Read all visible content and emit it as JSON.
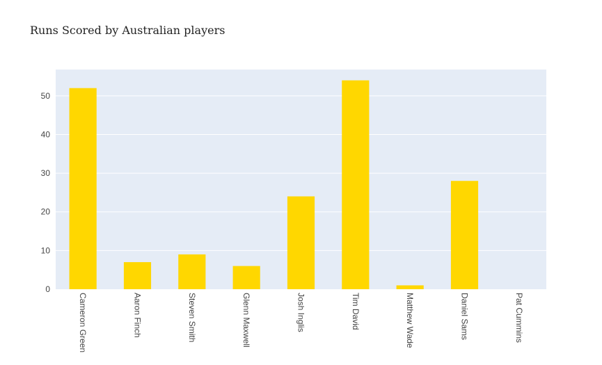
{
  "chart_data": {
    "type": "bar",
    "title": "Runs Scored by Australian players",
    "xlabel": "",
    "ylabel": "",
    "categories": [
      "Cameron Green",
      "Aaron Finch",
      "Steven Smith",
      "Glenn Maxwell",
      "Josh Inglis",
      "Tim David",
      "Matthew Wade",
      "Daniel Sams",
      "Pat Cummins"
    ],
    "values": [
      52,
      7,
      9,
      6,
      24,
      54,
      1,
      28,
      0
    ],
    "ylim": [
      0,
      56.8
    ],
    "yticks": [
      0,
      10,
      20,
      30,
      40,
      50
    ],
    "grid": true,
    "legend": "none",
    "colors": {
      "bar": "#FFD700",
      "plot_bg": "#E5ECF6",
      "grid": "#FFFFFF"
    }
  }
}
